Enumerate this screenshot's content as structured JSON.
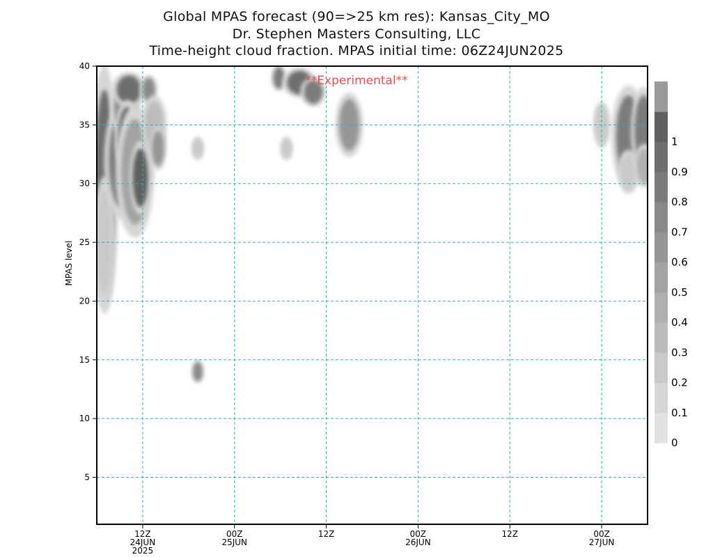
{
  "header": {
    "title_line1": "Global MPAS forecast (90=>25 km res): Kansas_City_MO",
    "title_line2": "Dr. Stephen Masters Consulting, LLC",
    "title_line3": "Time-height cloud fraction.   MPAS initial time: 06Z24JUN2025"
  },
  "watermark": "**Experimental**",
  "chart_data": {
    "type": "heatmap",
    "xlabel": "",
    "ylabel": "MPAS level",
    "xlim": [
      6,
      78
    ],
    "ylim": [
      1,
      40
    ],
    "x_unit": "hours since 00Z24JUN2025",
    "y_ticks": [
      5,
      10,
      15,
      20,
      25,
      30,
      35,
      40
    ],
    "x_ticks": [
      {
        "x": 12,
        "lines": [
          "12Z",
          "24JUN",
          "2025"
        ]
      },
      {
        "x": 24,
        "lines": [
          "00Z",
          "25JUN"
        ]
      },
      {
        "x": 36,
        "lines": [
          "12Z"
        ]
      },
      {
        "x": 48,
        "lines": [
          "00Z",
          "26JUN"
        ]
      },
      {
        "x": 60,
        "lines": [
          "12Z"
        ]
      },
      {
        "x": 72,
        "lines": [
          "00Z",
          "27JUN"
        ]
      }
    ],
    "grid": true,
    "grid_color": "#1fb5c0",
    "colorbar": {
      "levels": [
        "0",
        "0.1",
        "0.2",
        "0.3",
        "0.4",
        "0.5",
        "0.6",
        "0.7",
        "0.8",
        "0.9",
        "1"
      ],
      "colors": [
        "#e2e2e2",
        "#d6d6d6",
        "#c9c9c9",
        "#bcbcbc",
        "#b0b0b0",
        "#a3a3a3",
        "#969696",
        "#898989",
        "#7c7c7c",
        "#6e6e6e",
        "#606060",
        "#9a9a9a"
      ]
    },
    "cloud_cells": [
      {
        "x": 7.0,
        "y": 29.5,
        "dx": 1.3,
        "dy": 8.5,
        "v": 0.9
      },
      {
        "x": 7.0,
        "y": 25.0,
        "dx": 1.0,
        "dy": 4.5,
        "v": 0.15
      },
      {
        "x": 9.2,
        "y": 32.0,
        "dx": 1.6,
        "dy": 4.0,
        "v": 0.8
      },
      {
        "x": 9.7,
        "y": 36.5,
        "dx": 1.4,
        "dy": 2.0,
        "v": 0.7
      },
      {
        "x": 10.2,
        "y": 38.0,
        "dx": 1.6,
        "dy": 1.2,
        "v": 0.9
      },
      {
        "x": 10.0,
        "y": 34.0,
        "dx": 1.2,
        "dy": 2.5,
        "v": 0.95
      },
      {
        "x": 11.0,
        "y": 31.0,
        "dx": 1.8,
        "dy": 4.5,
        "v": 0.5
      },
      {
        "x": 11.7,
        "y": 30.5,
        "dx": 1.0,
        "dy": 2.5,
        "v": 0.95
      },
      {
        "x": 12.8,
        "y": 38.0,
        "dx": 0.8,
        "dy": 1.0,
        "v": 0.7
      },
      {
        "x": 13.5,
        "y": 35.0,
        "dx": 1.2,
        "dy": 2.0,
        "v": 0.3
      },
      {
        "x": 14.0,
        "y": 33.0,
        "dx": 0.8,
        "dy": 1.5,
        "v": 0.6
      },
      {
        "x": 19.2,
        "y": 33.0,
        "dx": 0.6,
        "dy": 0.8,
        "v": 0.15
      },
      {
        "x": 19.2,
        "y": 14.0,
        "dx": 0.6,
        "dy": 0.8,
        "v": 0.7
      },
      {
        "x": 29.8,
        "y": 39.0,
        "dx": 0.7,
        "dy": 0.9,
        "v": 0.75
      },
      {
        "x": 30.8,
        "y": 33.0,
        "dx": 0.6,
        "dy": 0.8,
        "v": 0.15
      },
      {
        "x": 32.5,
        "y": 38.6,
        "dx": 1.6,
        "dy": 1.0,
        "v": 0.9
      },
      {
        "x": 34.3,
        "y": 37.8,
        "dx": 1.2,
        "dy": 1.0,
        "v": 0.8
      },
      {
        "x": 39.0,
        "y": 35.0,
        "dx": 1.3,
        "dy": 2.2,
        "v": 0.6
      },
      {
        "x": 72.0,
        "y": 35.0,
        "dx": 0.8,
        "dy": 1.6,
        "v": 0.15
      },
      {
        "x": 75.5,
        "y": 34.0,
        "dx": 1.6,
        "dy": 3.5,
        "v": 0.8
      },
      {
        "x": 75.5,
        "y": 31.0,
        "dx": 1.0,
        "dy": 1.5,
        "v": 0.2
      },
      {
        "x": 77.5,
        "y": 34.5,
        "dx": 1.2,
        "dy": 3.0,
        "v": 0.8
      },
      {
        "x": 77.6,
        "y": 31.5,
        "dx": 1.0,
        "dy": 1.5,
        "v": 0.4
      }
    ]
  }
}
